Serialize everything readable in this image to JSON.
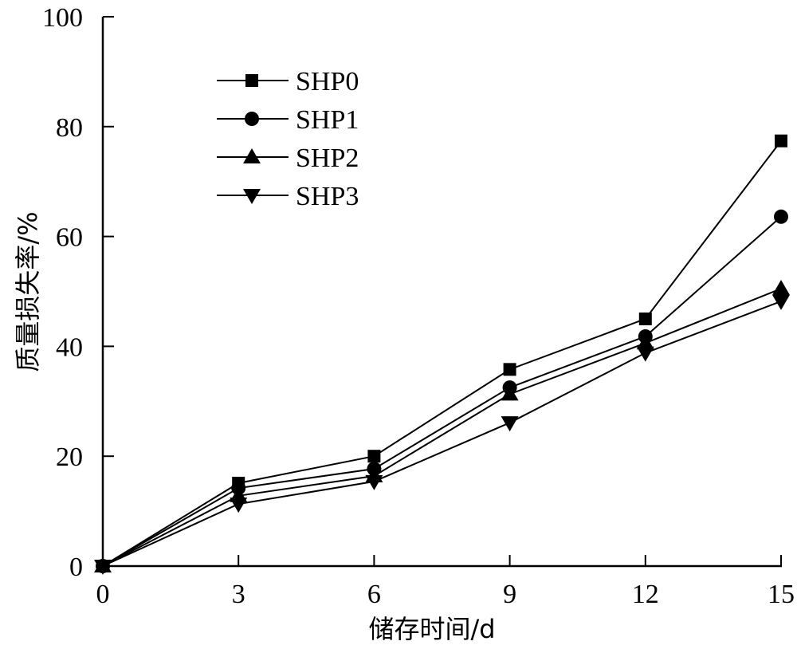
{
  "chart_data": {
    "type": "line",
    "title": "",
    "xlabel": "储存时间/d",
    "ylabel": "质量损失率/%",
    "xlim": [
      0,
      15
    ],
    "ylim": [
      0,
      100
    ],
    "xticks": [
      0,
      3,
      6,
      9,
      12,
      15
    ],
    "yticks": [
      0,
      20,
      40,
      60,
      80,
      100
    ],
    "xtick_labels": [
      "0",
      "3",
      "6",
      "9",
      "12",
      "15"
    ],
    "ytick_labels": [
      "0",
      "20",
      "40",
      "60",
      "80",
      "100"
    ],
    "grid": false,
    "legend_position": "top-left",
    "x": [
      0,
      3,
      6,
      9,
      12,
      15
    ],
    "series": [
      {
        "name": "SHP0",
        "marker": "square",
        "values": [
          0,
          15.1,
          20.0,
          35.8,
          45.0,
          77.4
        ]
      },
      {
        "name": "SHP1",
        "marker": "circle",
        "values": [
          0,
          14.2,
          17.7,
          32.5,
          41.8,
          63.6
        ]
      },
      {
        "name": "SHP2",
        "marker": "triangle-up",
        "values": [
          0,
          12.8,
          16.4,
          31.3,
          40.6,
          50.5
        ]
      },
      {
        "name": "SHP3",
        "marker": "triangle-down",
        "values": [
          0,
          11.3,
          15.4,
          26.1,
          38.8,
          48.2
        ]
      }
    ],
    "colors": {
      "line": "#000000",
      "marker": "#000000"
    }
  }
}
